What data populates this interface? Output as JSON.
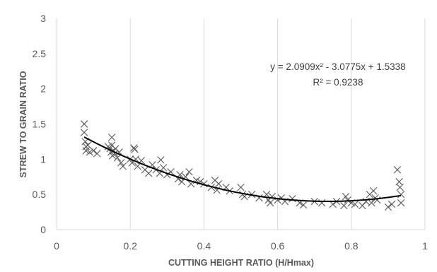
{
  "chart_data": {
    "type": "scatter",
    "title": "",
    "xlabel": "CUTTING HEIGHT RATIO (H/Hmax)",
    "ylabel": "STREW TO GRAIN RATIO",
    "xlim": [
      0,
      1
    ],
    "ylim": [
      0,
      3
    ],
    "xticks": [
      0,
      0.2,
      0.4,
      0.6,
      0.8,
      1
    ],
    "xtick_labels": [
      "0",
      "0.2",
      "0.4",
      "0.6",
      "0.8",
      "1"
    ],
    "yticks": [
      0,
      0.5,
      1,
      1.5,
      2,
      2.5,
      3
    ],
    "ytick_labels": [
      "0",
      "0.5",
      "1",
      "1.5",
      "2",
      "2.5",
      "3"
    ],
    "grid": "vertical",
    "marker": "x",
    "trendline": {
      "type": "polynomial",
      "coefficients": [
        2.0909,
        -3.0775,
        1.5338
      ],
      "x_range": [
        0.075,
        0.935
      ],
      "equation_text": "y = 2.0909x² - 3.0775x + 1.5338",
      "r2_text": "R² = 0.9238"
    },
    "points": [
      [
        0.075,
        1.5
      ],
      [
        0.075,
        1.38
      ],
      [
        0.078,
        1.25
      ],
      [
        0.08,
        1.18
      ],
      [
        0.08,
        1.12
      ],
      [
        0.085,
        1.2
      ],
      [
        0.09,
        1.1
      ],
      [
        0.1,
        1.12
      ],
      [
        0.11,
        1.08
      ],
      [
        0.14,
        1.18
      ],
      [
        0.145,
        1.15
      ],
      [
        0.148,
        1.1
      ],
      [
        0.15,
        1.31
      ],
      [
        0.15,
        1.2
      ],
      [
        0.152,
        1.05
      ],
      [
        0.155,
        1.12
      ],
      [
        0.158,
        1.08
      ],
      [
        0.16,
        1.15
      ],
      [
        0.165,
        1.02
      ],
      [
        0.17,
        1.1
      ],
      [
        0.175,
        0.95
      ],
      [
        0.18,
        0.9
      ],
      [
        0.2,
        1.0
      ],
      [
        0.205,
        0.95
      ],
      [
        0.21,
        1.16
      ],
      [
        0.212,
        1.14
      ],
      [
        0.215,
        1.0
      ],
      [
        0.22,
        0.9
      ],
      [
        0.23,
        0.98
      ],
      [
        0.24,
        0.85
      ],
      [
        0.25,
        0.8
      ],
      [
        0.26,
        0.92
      ],
      [
        0.27,
        0.85
      ],
      [
        0.28,
        0.8
      ],
      [
        0.283,
        0.99
      ],
      [
        0.29,
        0.88
      ],
      [
        0.3,
        0.78
      ],
      [
        0.31,
        0.82
      ],
      [
        0.33,
        0.72
      ],
      [
        0.335,
        0.78
      ],
      [
        0.34,
        0.68
      ],
      [
        0.35,
        0.75
      ],
      [
        0.36,
        0.82
      ],
      [
        0.365,
        0.65
      ],
      [
        0.38,
        0.7
      ],
      [
        0.39,
        0.68
      ],
      [
        0.4,
        0.65
      ],
      [
        0.42,
        0.6
      ],
      [
        0.43,
        0.7
      ],
      [
        0.435,
        0.56
      ],
      [
        0.44,
        0.65
      ],
      [
        0.46,
        0.6
      ],
      [
        0.47,
        0.55
      ],
      [
        0.5,
        0.6
      ],
      [
        0.505,
        0.5
      ],
      [
        0.51,
        0.47
      ],
      [
        0.53,
        0.5
      ],
      [
        0.55,
        0.45
      ],
      [
        0.57,
        0.5
      ],
      [
        0.575,
        0.42
      ],
      [
        0.58,
        0.38
      ],
      [
        0.585,
        0.47
      ],
      [
        0.6,
        0.42
      ],
      [
        0.61,
        0.45
      ],
      [
        0.62,
        0.4
      ],
      [
        0.64,
        0.44
      ],
      [
        0.66,
        0.38
      ],
      [
        0.67,
        0.35
      ],
      [
        0.7,
        0.4
      ],
      [
        0.72,
        0.38
      ],
      [
        0.75,
        0.36
      ],
      [
        0.76,
        0.4
      ],
      [
        0.78,
        0.34
      ],
      [
        0.785,
        0.47
      ],
      [
        0.79,
        0.42
      ],
      [
        0.8,
        0.38
      ],
      [
        0.81,
        0.36
      ],
      [
        0.83,
        0.34
      ],
      [
        0.84,
        0.4
      ],
      [
        0.85,
        0.5
      ],
      [
        0.855,
        0.38
      ],
      [
        0.86,
        0.55
      ],
      [
        0.865,
        0.45
      ],
      [
        0.87,
        0.42
      ],
      [
        0.9,
        0.32
      ],
      [
        0.91,
        0.36
      ],
      [
        0.925,
        0.85
      ],
      [
        0.93,
        0.68
      ],
      [
        0.932,
        0.6
      ],
      [
        0.935,
        0.5
      ],
      [
        0.935,
        0.38
      ]
    ]
  }
}
